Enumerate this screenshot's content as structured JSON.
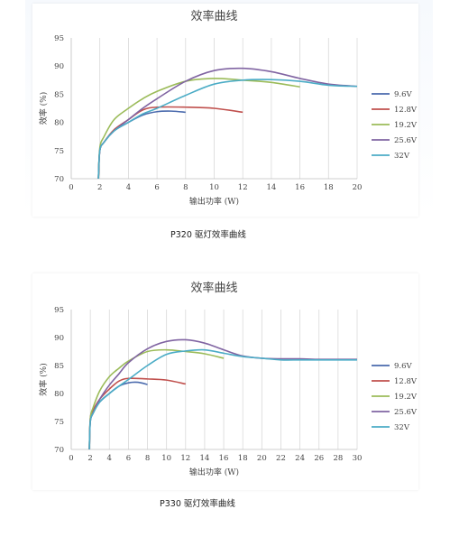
{
  "captions": [
    "P320 驱灯效率曲线",
    "P330 驱灯效率曲线"
  ],
  "chart_data": [
    {
      "type": "line",
      "title": "效率曲线",
      "xlabel": "输出功率 (W)",
      "ylabel": "效率 (%)",
      "xlim": [
        0,
        20
      ],
      "ylim": [
        70,
        95
      ],
      "xticks": [
        0,
        2,
        4,
        6,
        8,
        10,
        12,
        14,
        16,
        18,
        20
      ],
      "yticks": [
        70,
        75,
        80,
        85,
        90,
        95
      ],
      "grid": "vertical",
      "legend": "right",
      "series": [
        {
          "name": "9.6V",
          "color": "#4a6aad",
          "x": [
            1.9,
            2,
            2.3,
            3,
            4,
            5,
            6,
            7,
            8
          ],
          "y": [
            70,
            75,
            76.5,
            78.5,
            80,
            81.3,
            81.9,
            82,
            81.8
          ]
        },
        {
          "name": "12.8V",
          "color": "#c0504d",
          "x": [
            1.9,
            2,
            2.3,
            3,
            4,
            5,
            6,
            8,
            10,
            12
          ],
          "y": [
            70,
            75,
            76.5,
            78.7,
            80.5,
            82.2,
            82.7,
            82.7,
            82.5,
            81.8
          ]
        },
        {
          "name": "19.2V",
          "color": "#9bbb59",
          "x": [
            1.9,
            2,
            2.3,
            3,
            4,
            5,
            6,
            8,
            10,
            12,
            14,
            16
          ],
          "y": [
            70,
            75.5,
            77.5,
            80.5,
            82.5,
            84.2,
            85.5,
            87.3,
            87.8,
            87.5,
            87.1,
            86.3
          ]
        },
        {
          "name": "25.6V",
          "color": "#8064a2",
          "x": [
            1.9,
            2,
            2.3,
            3,
            4,
            5,
            6,
            8,
            10,
            12,
            14,
            16,
            18,
            20
          ],
          "y": [
            70,
            75,
            76.5,
            78.5,
            80.5,
            82.5,
            84.2,
            87.3,
            89.2,
            89.6,
            89,
            87.8,
            86.8,
            86.4
          ]
        },
        {
          "name": "32V",
          "color": "#4bacc6",
          "x": [
            1.9,
            2,
            2.3,
            3,
            4,
            5,
            6,
            8,
            10,
            12,
            14,
            16,
            18,
            20
          ],
          "y": [
            70,
            75,
            76.5,
            78.5,
            80,
            81.5,
            82.5,
            84.8,
            86.8,
            87.5,
            87.6,
            87.3,
            86.6,
            86.4
          ]
        }
      ]
    },
    {
      "type": "line",
      "title": "效率曲线",
      "xlabel": "输出功率 (W)",
      "ylabel": "效率 (%)",
      "xlim": [
        0,
        30
      ],
      "ylim": [
        70,
        95
      ],
      "xticks": [
        0,
        2,
        4,
        6,
        8,
        10,
        12,
        14,
        16,
        18,
        20,
        22,
        24,
        26,
        28,
        30
      ],
      "yticks": [
        70,
        75,
        80,
        85,
        90,
        95
      ],
      "grid": "vertical",
      "legend": "right",
      "series": [
        {
          "name": "9.6V",
          "color": "#4a6aad",
          "x": [
            1.9,
            2,
            2.3,
            3,
            4,
            5,
            6,
            7,
            8
          ],
          "y": [
            70,
            75,
            76.5,
            78.5,
            80,
            81.3,
            81.9,
            82,
            81.6
          ]
        },
        {
          "name": "12.8V",
          "color": "#c0504d",
          "x": [
            1.9,
            2,
            2.3,
            3,
            4,
            5,
            6,
            8,
            10,
            12
          ],
          "y": [
            70,
            75.5,
            77,
            79,
            80.8,
            82.2,
            82.7,
            82.6,
            82.4,
            81.7
          ]
        },
        {
          "name": "19.2V",
          "color": "#9bbb59",
          "x": [
            1.9,
            2,
            2.3,
            3,
            4,
            5,
            6,
            8,
            10,
            12,
            14,
            16
          ],
          "y": [
            70,
            75.5,
            77.5,
            80.5,
            83,
            84.5,
            85.8,
            87.5,
            87.8,
            87.5,
            87.1,
            86.3
          ]
        },
        {
          "name": "25.6V",
          "color": "#8064a2",
          "x": [
            1.9,
            2,
            2.3,
            3,
            4,
            5,
            6,
            8,
            10,
            12,
            14,
            16,
            18,
            20,
            22,
            24,
            26,
            28,
            30
          ],
          "y": [
            70,
            75,
            76.5,
            79,
            81.5,
            83.5,
            85.5,
            88,
            89.3,
            89.6,
            89,
            87.8,
            86.7,
            86.3,
            86.2,
            86.2,
            86.1,
            86.1,
            86.1
          ]
        },
        {
          "name": "32V",
          "color": "#4bacc6",
          "x": [
            1.9,
            2,
            2.3,
            3,
            4,
            5,
            6,
            8,
            10,
            12,
            14,
            16,
            18,
            20,
            22,
            24,
            26,
            28,
            30
          ],
          "y": [
            70,
            75,
            76.5,
            78.5,
            80,
            81.3,
            82.5,
            85,
            87,
            87.6,
            87.8,
            87.2,
            86.6,
            86.3,
            86,
            86,
            86,
            86,
            86
          ]
        }
      ]
    }
  ]
}
